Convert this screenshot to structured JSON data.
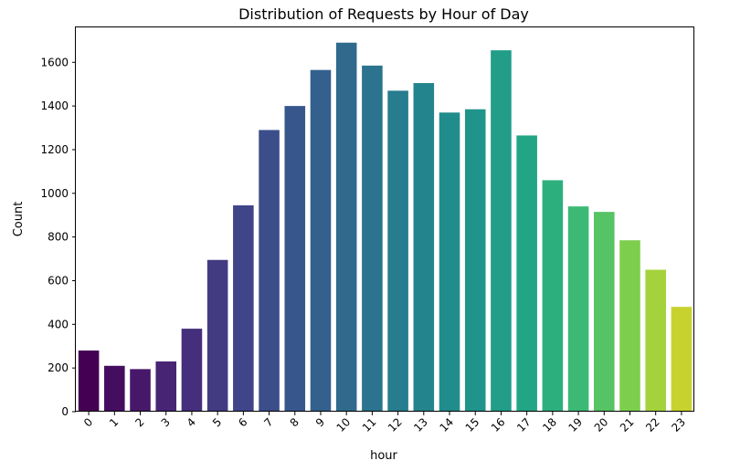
{
  "chart_data": {
    "type": "bar",
    "title": "Distribution of Requests by Hour of Day",
    "xlabel": "hour",
    "ylabel": "Count",
    "categories": [
      "0",
      "1",
      "2",
      "3",
      "4",
      "5",
      "6",
      "7",
      "8",
      "9",
      "10",
      "11",
      "12",
      "13",
      "14",
      "15",
      "16",
      "17",
      "18",
      "19",
      "20",
      "21",
      "22",
      "23"
    ],
    "values": [
      280,
      210,
      195,
      230,
      380,
      695,
      945,
      1290,
      1400,
      1565,
      1690,
      1585,
      1470,
      1505,
      1370,
      1385,
      1655,
      1265,
      1060,
      940,
      915,
      785,
      650,
      480
    ],
    "ylim": [
      0,
      1760
    ],
    "yticks": [
      0,
      200,
      400,
      600,
      800,
      1000,
      1200,
      1400,
      1600
    ],
    "grid": false,
    "palette": "viridis",
    "palette_start": "#440154",
    "palette_end": "#c8d22f",
    "x_tick_rotation_deg": 45
  }
}
